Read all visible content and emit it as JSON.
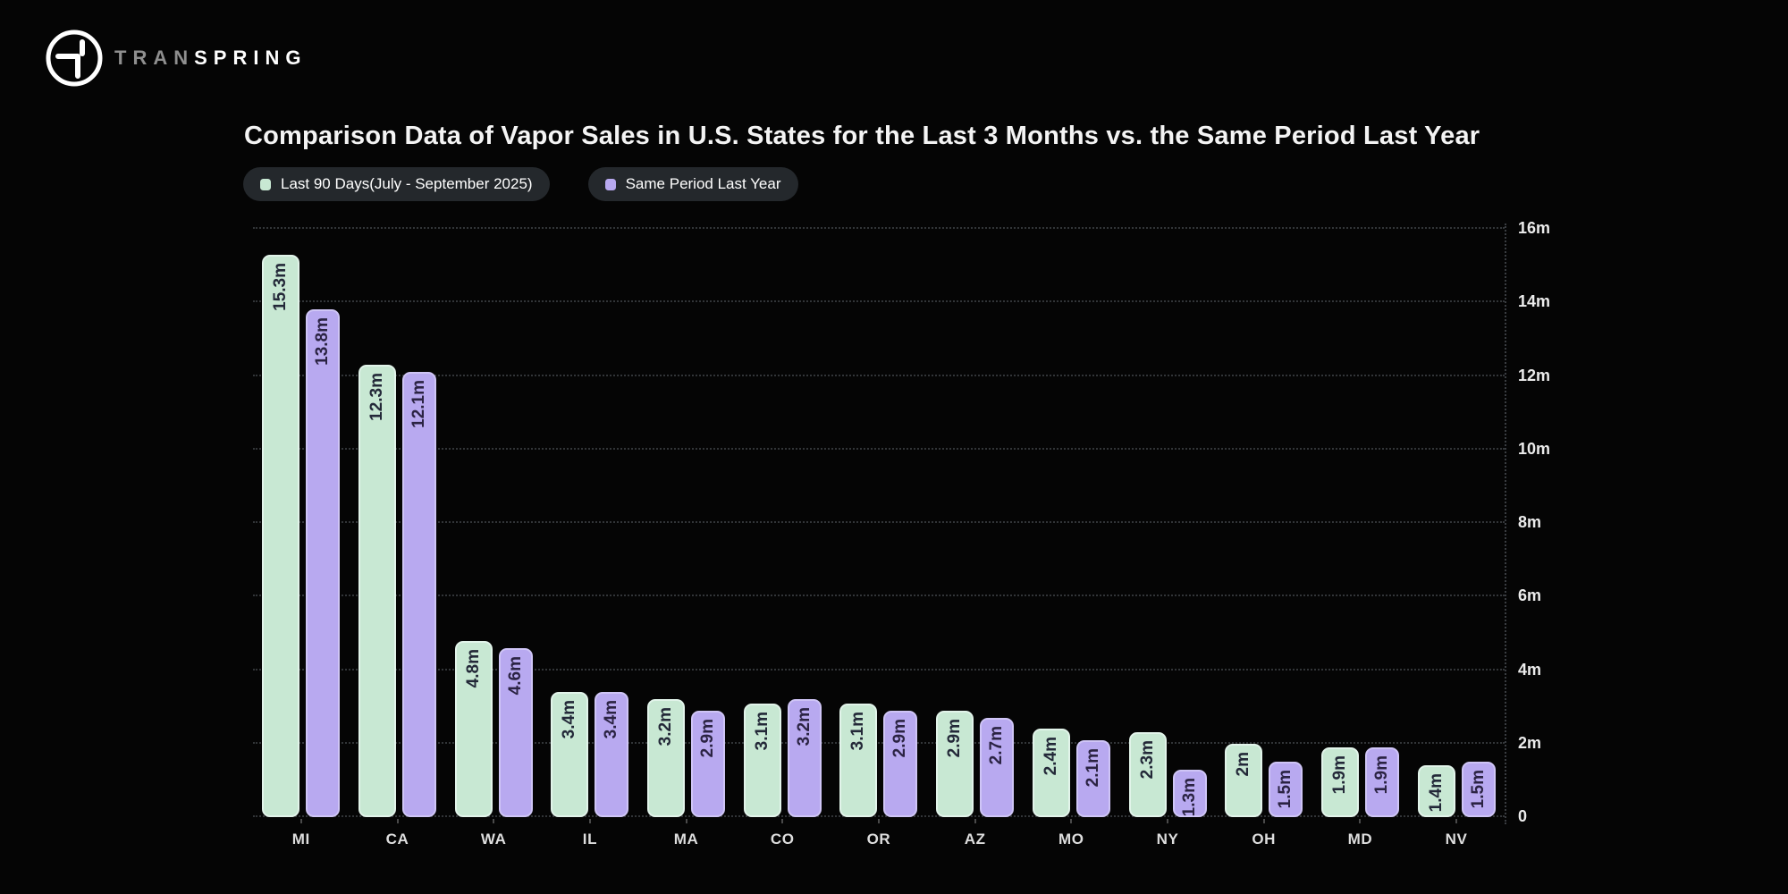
{
  "brand": {
    "name_prefix": "TRAN",
    "name_suffix": "SPRING"
  },
  "chart_data": {
    "type": "bar",
    "title": "Comparison Data of Vapor Sales in U.S. States for the Last 3 Months vs. the Same Period Last Year",
    "categories": [
      "MI",
      "CA",
      "WA",
      "IL",
      "MA",
      "CO",
      "OR",
      "AZ",
      "MO",
      "NY",
      "OH",
      "MD",
      "NV"
    ],
    "series": [
      {
        "name": "Last 90 Days(July - September 2025)",
        "color": "#c8e8d3",
        "values": [
          15.3,
          12.3,
          4.8,
          3.4,
          3.2,
          3.1,
          3.1,
          2.9,
          2.4,
          2.3,
          2.0,
          1.9,
          1.4
        ],
        "labels": [
          "15.3m",
          "12.3m",
          "4.8m",
          "3.4m",
          "3.2m",
          "3.1m",
          "3.1m",
          "2.9m",
          "2.4m",
          "2.3m",
          "2m",
          "1.9m",
          "1.4m"
        ]
      },
      {
        "name": "Same Period Last Year",
        "color": "#b8a9f0",
        "values": [
          13.8,
          12.1,
          4.6,
          3.4,
          2.9,
          3.2,
          2.9,
          2.7,
          2.1,
          1.3,
          1.5,
          1.9,
          1.5
        ],
        "labels": [
          "13.8m",
          "12.1m",
          "4.6m",
          "3.4m",
          "2.9m",
          "3.2m",
          "2.9m",
          "2.7m",
          "2.1m",
          "1.3m",
          "1.5m",
          "1.9m",
          "1.5m"
        ]
      }
    ],
    "y_ticks": [
      "0",
      "2m",
      "4m",
      "6m",
      "8m",
      "10m",
      "12m",
      "14m",
      "16m"
    ],
    "ylim": [
      0,
      16
    ],
    "xlabel": "",
    "ylabel": "",
    "legend_position": "top-left",
    "grid": "dotted-horizontal",
    "background": "#050505"
  }
}
